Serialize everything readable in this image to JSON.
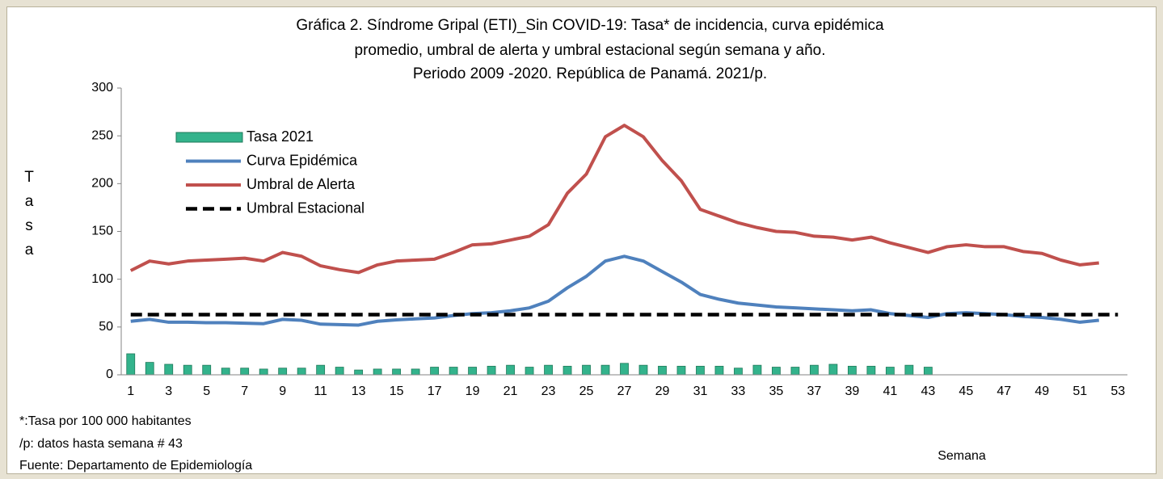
{
  "chart_data": {
    "type": "combo",
    "title": [
      "Gráfica 2. Síndrome Gripal (ETI)_Sin COVID-19: Tasa* de incidencia, curva epidémica",
      "promedio, umbral de alerta y umbral estacional según semana y año.",
      "Periodo 2009 -2020.  República de Panamá. 2021/p."
    ],
    "y_label": "Tasa",
    "x_label": "Semana",
    "notes": [
      "*:Tasa por 100 000 habitantes",
      "/p: datos hasta semana # 43",
      "Fuente: Departamento de Epidemiología"
    ],
    "categories": [
      1,
      null,
      3,
      null,
      5,
      null,
      7,
      null,
      9,
      null,
      11,
      null,
      13,
      null,
      15,
      null,
      17,
      null,
      19,
      null,
      21,
      null,
      23,
      null,
      25,
      null,
      27,
      null,
      29,
      null,
      31,
      null,
      33,
      null,
      35,
      null,
      37,
      null,
      39,
      null,
      41,
      null,
      43,
      null,
      45,
      null,
      47,
      null,
      49,
      null,
      51,
      null,
      53
    ],
    "ylim": [
      0,
      300
    ],
    "yticks": [
      0,
      50,
      100,
      150,
      200,
      250,
      300
    ],
    "grid": false,
    "legend": "top-left",
    "series": [
      {
        "name": "Tasa 2021",
        "type": "bar",
        "color": "#33b38c",
        "values": [
          22,
          13,
          11,
          10,
          10,
          7,
          7,
          6,
          7,
          7,
          10,
          8,
          5,
          6,
          6,
          6,
          8,
          8,
          8,
          9,
          10,
          8,
          10,
          9,
          10,
          10,
          12,
          10,
          9,
          9,
          9,
          9,
          7,
          10,
          8,
          8,
          10,
          11,
          9,
          9,
          8,
          10,
          8,
          null,
          null,
          null,
          null,
          null,
          null,
          null,
          null,
          null,
          null
        ]
      },
      {
        "name": "Curva Epidémica",
        "type": "line",
        "color": "#4f81bd",
        "values": [
          56,
          58,
          55,
          55,
          54.5,
          54.5,
          54,
          53.5,
          58,
          57,
          53,
          52.5,
          52,
          56,
          57.5,
          58.5,
          59.5,
          62,
          64,
          65,
          67,
          70,
          77,
          91,
          103,
          119,
          124,
          119,
          108,
          97,
          84,
          79,
          75,
          73,
          71,
          70,
          69,
          68,
          67,
          68,
          64,
          62,
          60,
          64,
          65,
          64,
          63,
          61,
          60,
          58,
          55,
          57,
          null
        ]
      },
      {
        "name": "Umbral de Alerta",
        "type": "line",
        "color": "#c0504d",
        "values": [
          109,
          119,
          116,
          119,
          120,
          121,
          122,
          119,
          128,
          124,
          114,
          110,
          107,
          115,
          119,
          120,
          121,
          128,
          136,
          137,
          141,
          145,
          157,
          190,
          210,
          249,
          261,
          249,
          224,
          203,
          173,
          166,
          159,
          154,
          150,
          149,
          145,
          144,
          141,
          144,
          138,
          133,
          128,
          134,
          136,
          134,
          134,
          129,
          127,
          120,
          115,
          117,
          null
        ]
      },
      {
        "name": "Umbral Estacional",
        "type": "line",
        "dash": true,
        "color": "#000000",
        "values": [
          63,
          63,
          63,
          63,
          63,
          63,
          63,
          63,
          63,
          63,
          63,
          63,
          63,
          63,
          63,
          63,
          63,
          63,
          63,
          63,
          63,
          63,
          63,
          63,
          63,
          63,
          63,
          63,
          63,
          63,
          63,
          63,
          63,
          63,
          63,
          63,
          63,
          63,
          63,
          63,
          63,
          63,
          63,
          63,
          63,
          63,
          63,
          63,
          63,
          63,
          63,
          63,
          63
        ]
      }
    ]
  }
}
